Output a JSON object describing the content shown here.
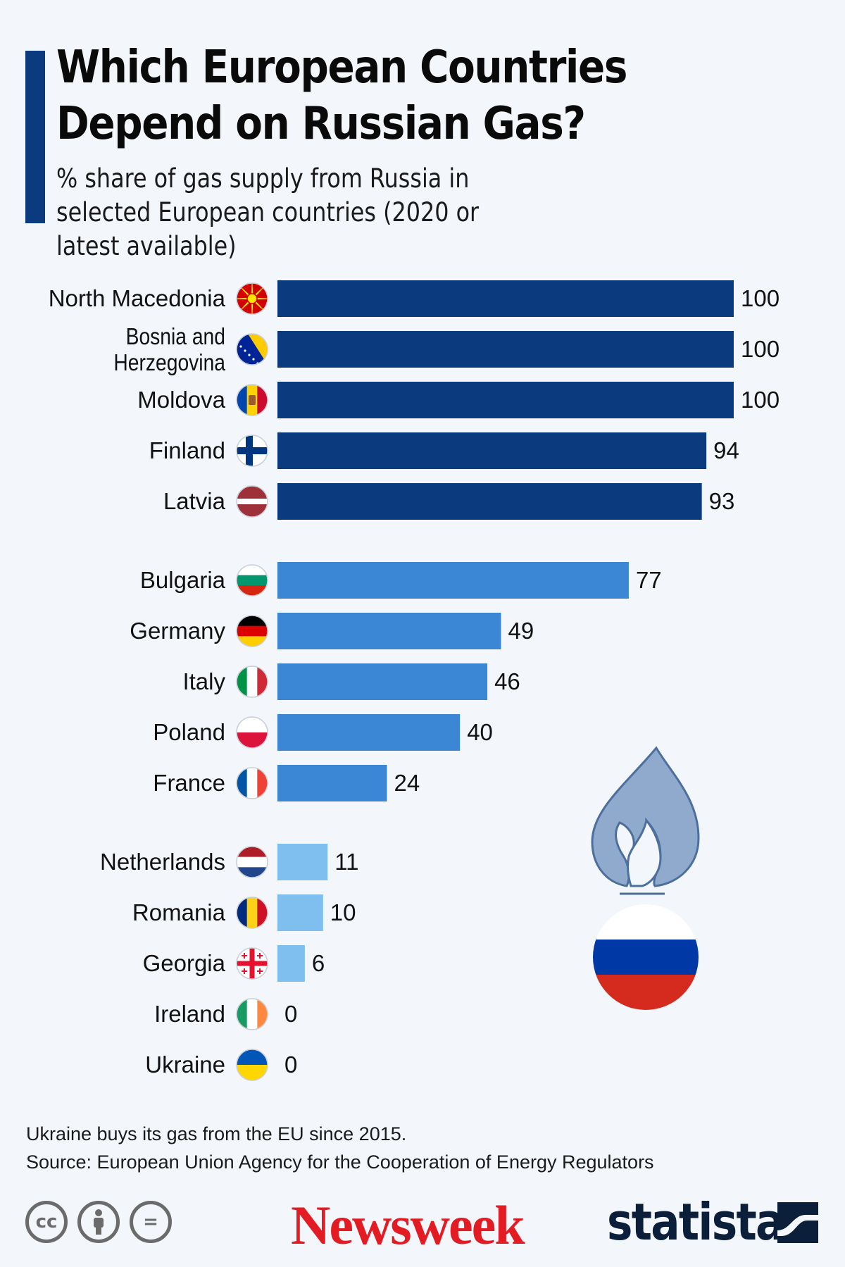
{
  "header": {
    "title": "Which European Countries Depend on Russian Gas?",
    "subtitle": "% share of gas supply from Russia in selected European countries (2020 or latest available)"
  },
  "chart_data": {
    "type": "bar",
    "orientation": "horizontal",
    "title": "Which European Countries Depend on Russian Gas?",
    "subtitle": "% share of gas supply from Russia in selected European countries (2020 or latest available)",
    "xlim": [
      0,
      100
    ],
    "grid": false,
    "categories": [
      "North Macedonia",
      "Bosnia and Herzegovina",
      "Moldova",
      "Finland",
      "Latvia",
      "Bulgaria",
      "Germany",
      "Italy",
      "Poland",
      "France",
      "Netherlands",
      "Romania",
      "Georgia",
      "Ireland",
      "Ukraine"
    ],
    "values": [
      100,
      100,
      100,
      94,
      93,
      77,
      49,
      46,
      40,
      24,
      11,
      10,
      6,
      0,
      0
    ],
    "groups": [
      0,
      0,
      0,
      0,
      0,
      1,
      1,
      1,
      1,
      1,
      2,
      2,
      2,
      2,
      2
    ],
    "group_colors": [
      "#0b3a7e",
      "#3c86d6",
      "#7fbff0"
    ]
  },
  "flags": [
    {
      "name": "north-macedonia",
      "colors": [
        "#d20000",
        "#ffe600"
      ]
    },
    {
      "name": "bosnia",
      "colors": [
        "#002395",
        "#fecb00",
        "#ffffff"
      ]
    },
    {
      "name": "moldova",
      "colors": [
        "#0046ae",
        "#ffd200",
        "#cc092f"
      ]
    },
    {
      "name": "finland",
      "colors": [
        "#ffffff",
        "#003580"
      ]
    },
    {
      "name": "latvia",
      "colors": [
        "#9e3039",
        "#ffffff"
      ]
    },
    {
      "name": "bulgaria",
      "colors": [
        "#ffffff",
        "#00966e",
        "#d62612"
      ]
    },
    {
      "name": "germany",
      "colors": [
        "#000000",
        "#dd0000",
        "#ffce00"
      ]
    },
    {
      "name": "italy",
      "colors": [
        "#009246",
        "#ffffff",
        "#ce2b37"
      ]
    },
    {
      "name": "poland",
      "colors": [
        "#ffffff",
        "#dc143c"
      ]
    },
    {
      "name": "france",
      "colors": [
        "#0055a4",
        "#ffffff",
        "#ef4135"
      ]
    },
    {
      "name": "netherlands",
      "colors": [
        "#ae1c28",
        "#ffffff",
        "#21468b"
      ]
    },
    {
      "name": "romania",
      "colors": [
        "#002b7f",
        "#fcd116",
        "#ce1126"
      ]
    },
    {
      "name": "georgia",
      "colors": [
        "#ffffff",
        "#e8112d"
      ]
    },
    {
      "name": "ireland",
      "colors": [
        "#169b62",
        "#ffffff",
        "#ff883e"
      ]
    },
    {
      "name": "ukraine",
      "colors": [
        "#0057b7",
        "#ffd700"
      ]
    }
  ],
  "illustration": {
    "flame_icon": "gas-flame-icon",
    "flag_colors": [
      "#ffffff",
      "#0039a6",
      "#d52b1e"
    ]
  },
  "footer": {
    "note": "Ukraine buys its gas from the EU since 2015.",
    "source": "Source: European Union Agency for the Cooperation of Energy Regulators",
    "cc_icons": [
      "cc-icon",
      "by-icon",
      "nd-icon"
    ],
    "cc_labels": [
      "cc",
      "",
      "="
    ],
    "newsweek_logo": "Newsweek",
    "statista_logo": "statista"
  }
}
